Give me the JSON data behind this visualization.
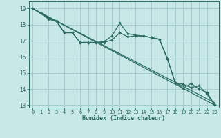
{
  "xlabel": "Humidex (Indice chaleur)",
  "bg_color": "#c8e8e8",
  "grid_color": "#a0c8c8",
  "line_color": "#2a6b60",
  "xlim_min": -0.5,
  "xlim_max": 23.5,
  "ylim_min": 12.85,
  "ylim_max": 19.45,
  "yticks": [
    13,
    14,
    15,
    16,
    17,
    18,
    19
  ],
  "xticks": [
    0,
    1,
    2,
    3,
    4,
    5,
    6,
    7,
    8,
    9,
    10,
    11,
    12,
    13,
    14,
    15,
    16,
    17,
    18,
    19,
    20,
    21,
    22,
    23
  ],
  "line1_x": [
    0,
    1,
    2,
    3,
    4,
    5,
    6,
    7,
    8,
    9,
    10,
    11,
    12,
    13,
    14,
    15,
    16,
    17,
    18,
    19,
    20,
    21,
    22,
    23
  ],
  "line1_y": [
    19.0,
    18.75,
    18.4,
    18.25,
    17.5,
    17.5,
    16.9,
    16.9,
    16.9,
    16.95,
    17.3,
    18.1,
    17.45,
    17.35,
    17.3,
    17.2,
    17.1,
    15.9,
    14.4,
    14.05,
    14.35,
    14.0,
    13.8,
    13.0
  ],
  "line2_x": [
    0,
    1,
    2,
    3,
    4,
    5,
    6,
    7,
    8,
    9,
    10,
    11,
    12,
    13,
    14,
    15,
    16,
    17,
    18,
    19,
    20,
    21,
    22,
    23
  ],
  "line2_y": [
    19.0,
    18.7,
    18.35,
    18.2,
    17.5,
    17.5,
    16.9,
    16.9,
    16.9,
    16.9,
    17.05,
    17.5,
    17.25,
    17.3,
    17.3,
    17.2,
    17.1,
    15.9,
    14.4,
    14.3,
    14.1,
    14.2,
    13.7,
    13.0
  ],
  "diag_y1_start": 19.0,
  "diag_y1_end": 13.0,
  "diag_y2_start": 19.0,
  "diag_y2_end": 13.15
}
